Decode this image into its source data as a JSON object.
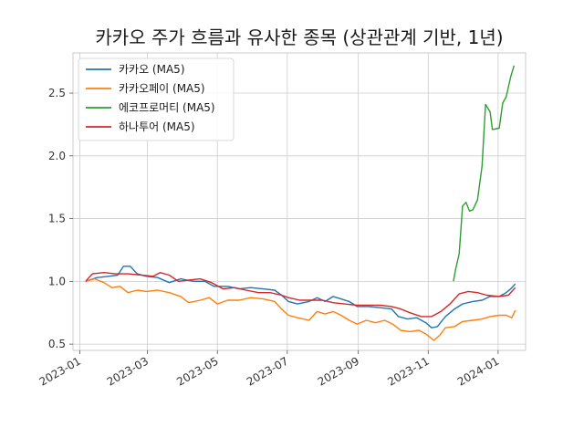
{
  "title": "카카오 주가 흐름과 유사한 종목 (상관관계 기반, 1년)",
  "chart_data": {
    "type": "line",
    "title": "카카오 주가 흐름과 유사한 종목 (상관관계 기반, 1년)",
    "xlabel": "",
    "ylabel": "",
    "x_axis_type": "date",
    "xlim": [
      "2022-12-26",
      "2024-01-25"
    ],
    "ylim": [
      0.45,
      2.82
    ],
    "x_ticks": [
      "2023-01",
      "2023-03",
      "2023-05",
      "2023-07",
      "2023-09",
      "2023-11",
      "2024-01"
    ],
    "x_tick_dates": [
      "2023-01-01",
      "2023-03-01",
      "2023-05-01",
      "2023-07-01",
      "2023-09-01",
      "2023-11-01",
      "2024-01-01"
    ],
    "y_ticks": [
      "0.5",
      "1.0",
      "1.5",
      "2.0",
      "2.5"
    ],
    "y_tick_values": [
      0.5,
      1.0,
      1.5,
      2.0,
      2.5
    ],
    "grid": true,
    "legend_position": "top-left",
    "series": [
      {
        "name": "카카오 (MA5)",
        "color": "#1f77b4",
        "points": [
          [
            "2023-01-06",
            1.0
          ],
          [
            "2023-01-16",
            1.03
          ],
          [
            "2023-01-26",
            1.04
          ],
          [
            "2023-02-03",
            1.05
          ],
          [
            "2023-02-08",
            1.12
          ],
          [
            "2023-02-14",
            1.12
          ],
          [
            "2023-02-20",
            1.06
          ],
          [
            "2023-02-28",
            1.04
          ],
          [
            "2023-03-10",
            1.03
          ],
          [
            "2023-03-20",
            0.99
          ],
          [
            "2023-03-30",
            1.02
          ],
          [
            "2023-04-10",
            1.0
          ],
          [
            "2023-04-20",
            1.0
          ],
          [
            "2023-04-28",
            0.96
          ],
          [
            "2023-05-10",
            0.96
          ],
          [
            "2023-05-20",
            0.94
          ],
          [
            "2023-05-30",
            0.95
          ],
          [
            "2023-06-10",
            0.94
          ],
          [
            "2023-06-20",
            0.93
          ],
          [
            "2023-06-26",
            0.89
          ],
          [
            "2023-07-02",
            0.84
          ],
          [
            "2023-07-10",
            0.82
          ],
          [
            "2023-07-20",
            0.84
          ],
          [
            "2023-07-27",
            0.87
          ],
          [
            "2023-08-03",
            0.84
          ],
          [
            "2023-08-10",
            0.88
          ],
          [
            "2023-08-17",
            0.86
          ],
          [
            "2023-08-24",
            0.84
          ],
          [
            "2023-08-31",
            0.8
          ],
          [
            "2023-09-10",
            0.8
          ],
          [
            "2023-09-20",
            0.79
          ],
          [
            "2023-09-30",
            0.78
          ],
          [
            "2023-10-06",
            0.72
          ],
          [
            "2023-10-14",
            0.7
          ],
          [
            "2023-10-22",
            0.71
          ],
          [
            "2023-10-30",
            0.67
          ],
          [
            "2023-11-04",
            0.63
          ],
          [
            "2023-11-09",
            0.64
          ],
          [
            "2023-11-16",
            0.72
          ],
          [
            "2023-11-24",
            0.78
          ],
          [
            "2023-12-01",
            0.82
          ],
          [
            "2023-12-10",
            0.84
          ],
          [
            "2023-12-18",
            0.85
          ],
          [
            "2023-12-25",
            0.88
          ],
          [
            "2024-01-02",
            0.88
          ],
          [
            "2024-01-08",
            0.91
          ],
          [
            "2024-01-12",
            0.94
          ],
          [
            "2024-01-16",
            0.98
          ]
        ]
      },
      {
        "name": "카카오페이 (MA5)",
        "color": "#ff7f0e",
        "points": [
          [
            "2023-01-06",
            1.0
          ],
          [
            "2023-01-14",
            1.02
          ],
          [
            "2023-01-22",
            0.99
          ],
          [
            "2023-01-29",
            0.95
          ],
          [
            "2023-02-05",
            0.96
          ],
          [
            "2023-02-12",
            0.91
          ],
          [
            "2023-02-20",
            0.93
          ],
          [
            "2023-02-28",
            0.92
          ],
          [
            "2023-03-10",
            0.93
          ],
          [
            "2023-03-20",
            0.91
          ],
          [
            "2023-03-30",
            0.88
          ],
          [
            "2023-04-06",
            0.83
          ],
          [
            "2023-04-16",
            0.85
          ],
          [
            "2023-04-24",
            0.87
          ],
          [
            "2023-05-01",
            0.82
          ],
          [
            "2023-05-10",
            0.85
          ],
          [
            "2023-05-20",
            0.85
          ],
          [
            "2023-05-30",
            0.87
          ],
          [
            "2023-06-10",
            0.86
          ],
          [
            "2023-06-20",
            0.84
          ],
          [
            "2023-06-26",
            0.78
          ],
          [
            "2023-07-02",
            0.73
          ],
          [
            "2023-07-10",
            0.71
          ],
          [
            "2023-07-20",
            0.69
          ],
          [
            "2023-07-27",
            0.76
          ],
          [
            "2023-08-03",
            0.74
          ],
          [
            "2023-08-10",
            0.76
          ],
          [
            "2023-08-17",
            0.73
          ],
          [
            "2023-08-24",
            0.69
          ],
          [
            "2023-08-31",
            0.66
          ],
          [
            "2023-09-08",
            0.69
          ],
          [
            "2023-09-16",
            0.67
          ],
          [
            "2023-09-24",
            0.69
          ],
          [
            "2023-10-01",
            0.66
          ],
          [
            "2023-10-08",
            0.61
          ],
          [
            "2023-10-16",
            0.6
          ],
          [
            "2023-10-24",
            0.61
          ],
          [
            "2023-10-30",
            0.58
          ],
          [
            "2023-11-06",
            0.53
          ],
          [
            "2023-11-11",
            0.57
          ],
          [
            "2023-11-16",
            0.63
          ],
          [
            "2023-11-24",
            0.64
          ],
          [
            "2023-12-01",
            0.68
          ],
          [
            "2023-12-10",
            0.69
          ],
          [
            "2023-12-18",
            0.7
          ],
          [
            "2023-12-25",
            0.72
          ],
          [
            "2024-01-02",
            0.73
          ],
          [
            "2024-01-08",
            0.73
          ],
          [
            "2024-01-13",
            0.71
          ],
          [
            "2024-01-16",
            0.77
          ]
        ]
      },
      {
        "name": "에코프로머티 (MA5)",
        "color": "#2ca02c",
        "points": [
          [
            "2023-11-23",
            1.0
          ],
          [
            "2023-11-25",
            1.1
          ],
          [
            "2023-11-28",
            1.22
          ],
          [
            "2023-12-01",
            1.6
          ],
          [
            "2023-12-04",
            1.63
          ],
          [
            "2023-12-07",
            1.56
          ],
          [
            "2023-12-10",
            1.57
          ],
          [
            "2023-12-14",
            1.65
          ],
          [
            "2023-12-18",
            1.92
          ],
          [
            "2023-12-21",
            2.41
          ],
          [
            "2023-12-25",
            2.35
          ],
          [
            "2023-12-27",
            2.21
          ],
          [
            "2024-01-02",
            2.22
          ],
          [
            "2024-01-05",
            2.42
          ],
          [
            "2024-01-08",
            2.47
          ],
          [
            "2024-01-12",
            2.63
          ],
          [
            "2024-01-15",
            2.72
          ]
        ]
      },
      {
        "name": "하나투어 (MA5)",
        "color": "#d62728",
        "points": [
          [
            "2023-01-06",
            1.0
          ],
          [
            "2023-01-12",
            1.06
          ],
          [
            "2023-01-22",
            1.07
          ],
          [
            "2023-02-01",
            1.06
          ],
          [
            "2023-02-12",
            1.06
          ],
          [
            "2023-02-24",
            1.05
          ],
          [
            "2023-03-06",
            1.04
          ],
          [
            "2023-03-12",
            1.07
          ],
          [
            "2023-03-20",
            1.05
          ],
          [
            "2023-03-28",
            1.0
          ],
          [
            "2023-04-06",
            1.01
          ],
          [
            "2023-04-16",
            1.02
          ],
          [
            "2023-04-26",
            0.99
          ],
          [
            "2023-05-06",
            0.94
          ],
          [
            "2023-05-16",
            0.95
          ],
          [
            "2023-05-26",
            0.93
          ],
          [
            "2023-06-06",
            0.91
          ],
          [
            "2023-06-16",
            0.91
          ],
          [
            "2023-06-26",
            0.89
          ],
          [
            "2023-07-02",
            0.87
          ],
          [
            "2023-07-12",
            0.85
          ],
          [
            "2023-07-22",
            0.85
          ],
          [
            "2023-08-01",
            0.85
          ],
          [
            "2023-08-10",
            0.83
          ],
          [
            "2023-08-20",
            0.82
          ],
          [
            "2023-08-31",
            0.81
          ],
          [
            "2023-09-10",
            0.81
          ],
          [
            "2023-09-20",
            0.81
          ],
          [
            "2023-09-30",
            0.8
          ],
          [
            "2023-10-08",
            0.78
          ],
          [
            "2023-10-16",
            0.75
          ],
          [
            "2023-10-26",
            0.72
          ],
          [
            "2023-11-04",
            0.72
          ],
          [
            "2023-11-12",
            0.76
          ],
          [
            "2023-11-20",
            0.82
          ],
          [
            "2023-11-28",
            0.9
          ],
          [
            "2023-12-06",
            0.92
          ],
          [
            "2023-12-14",
            0.91
          ],
          [
            "2023-12-22",
            0.89
          ],
          [
            "2024-01-02",
            0.88
          ],
          [
            "2024-01-10",
            0.89
          ],
          [
            "2024-01-16",
            0.95
          ]
        ]
      }
    ]
  }
}
